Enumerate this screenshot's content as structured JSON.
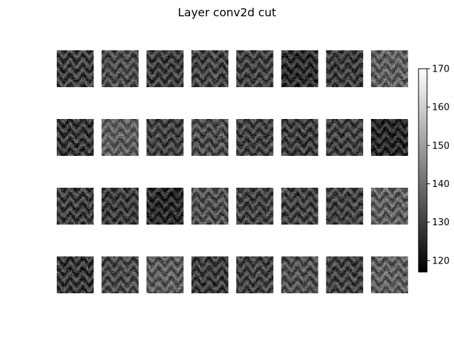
{
  "chart_data": {
    "type": "heatmap",
    "title": "Layer conv2d cut",
    "layout": {
      "rows": 4,
      "cols": 8
    },
    "colormap": "gray",
    "colorbar": {
      "vmin": 117,
      "vmax": 170,
      "ticks": [
        120,
        130,
        140,
        150,
        160,
        170
      ],
      "placement": "right"
    },
    "feature_maps": {
      "mean_intensity": [
        [
          130,
          133,
          130,
          131,
          131,
          127,
          130,
          137
        ],
        [
          129,
          137,
          131,
          133,
          131,
          130,
          131,
          126
        ],
        [
          130,
          130,
          126,
          134,
          131,
          131,
          131,
          137
        ],
        [
          129,
          133,
          136,
          130,
          131,
          134,
          131,
          137
        ]
      ]
    }
  }
}
